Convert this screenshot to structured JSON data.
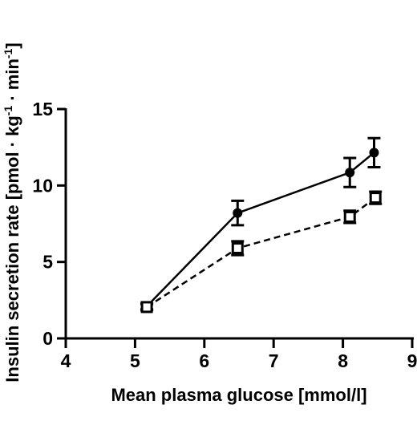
{
  "chart_data": {
    "type": "line",
    "xlabel": "Mean plasma glucose [mmol/l]",
    "ylabel_parts": [
      "Insulin secretion rate [pmol · kg",
      "-1",
      " · min",
      "-1",
      "]"
    ],
    "xlim": [
      4,
      9
    ],
    "ylim": [
      0,
      15
    ],
    "x_ticks": [
      "4",
      "5",
      "6",
      "7",
      "8",
      "9"
    ],
    "y_ticks": [
      "0",
      "5",
      "10",
      "15"
    ],
    "grid": false,
    "legend": "none",
    "series": [
      {
        "marker": "filled-circle",
        "line_style": "solid",
        "color": "#000000",
        "points": [
          {
            "x": 5.17,
            "y": 2.1,
            "err": 0.2
          },
          {
            "x": 6.48,
            "y": 8.2,
            "err": 0.8
          },
          {
            "x": 8.1,
            "y": 10.85,
            "err": 0.95
          },
          {
            "x": 8.45,
            "y": 12.15,
            "err": 0.95
          }
        ]
      },
      {
        "marker": "open-square",
        "line_style": "dashed",
        "color": "#000000",
        "points": [
          {
            "x": 5.17,
            "y": 2.05,
            "err": 0.2
          },
          {
            "x": 6.48,
            "y": 5.9,
            "err": 0.45
          },
          {
            "x": 8.1,
            "y": 7.95,
            "err": 0.4
          },
          {
            "x": 8.47,
            "y": 9.2,
            "err": 0.4
          }
        ]
      }
    ]
  }
}
